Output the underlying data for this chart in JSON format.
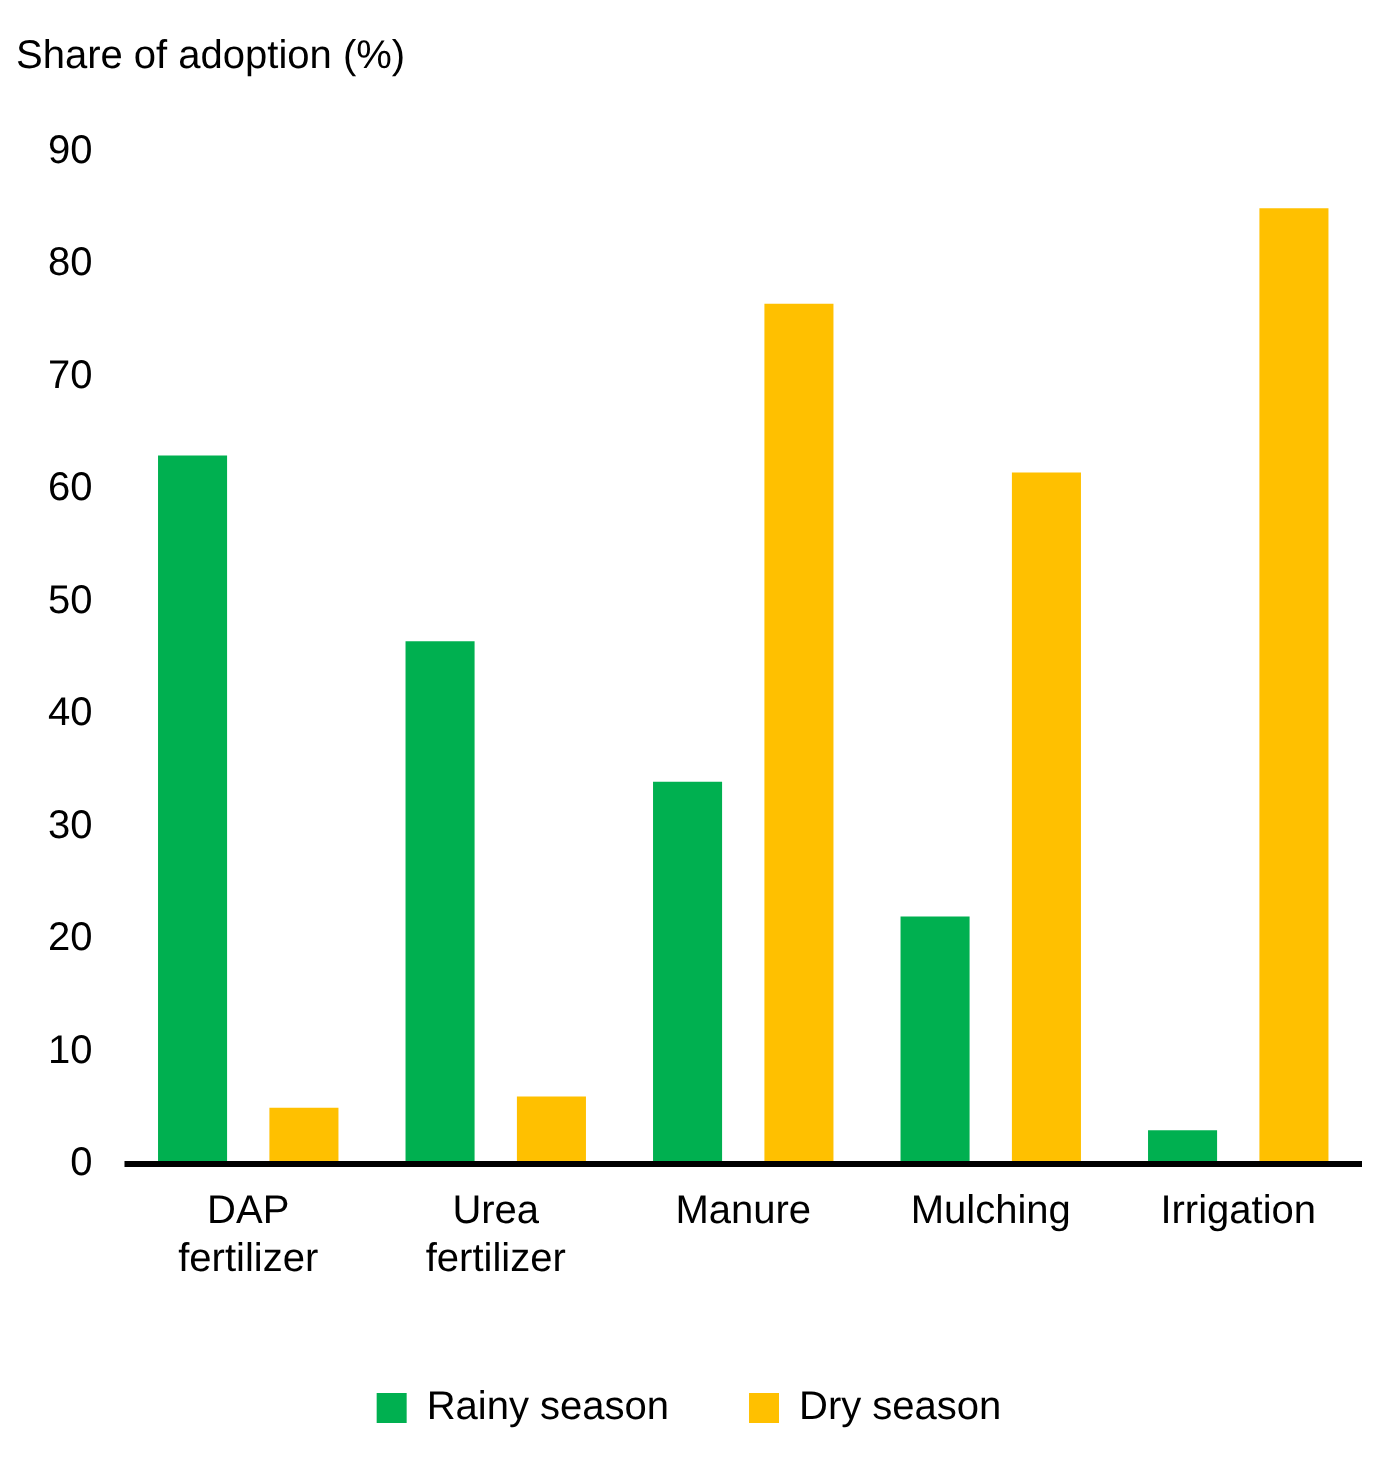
{
  "chart_data": {
    "type": "bar",
    "ylabel": "Share of adoption (%)",
    "categories": [
      "DAP fertilizer",
      "Urea fertilizer",
      "Manure",
      "Mulching",
      "Irrigation"
    ],
    "series": [
      {
        "name": "Rainy season",
        "color": "#00b050",
        "values": [
          63,
          46.5,
          34,
          22,
          3
        ]
      },
      {
        "name": "Dry season",
        "color": "#ffc000",
        "values": [
          5,
          6,
          76.5,
          61.5,
          85
        ]
      }
    ],
    "ylim": [
      0,
      90
    ],
    "yticks": [
      0,
      10,
      20,
      30,
      40,
      50,
      60,
      70,
      80,
      90
    ],
    "grid": false,
    "legend": "bottom"
  }
}
